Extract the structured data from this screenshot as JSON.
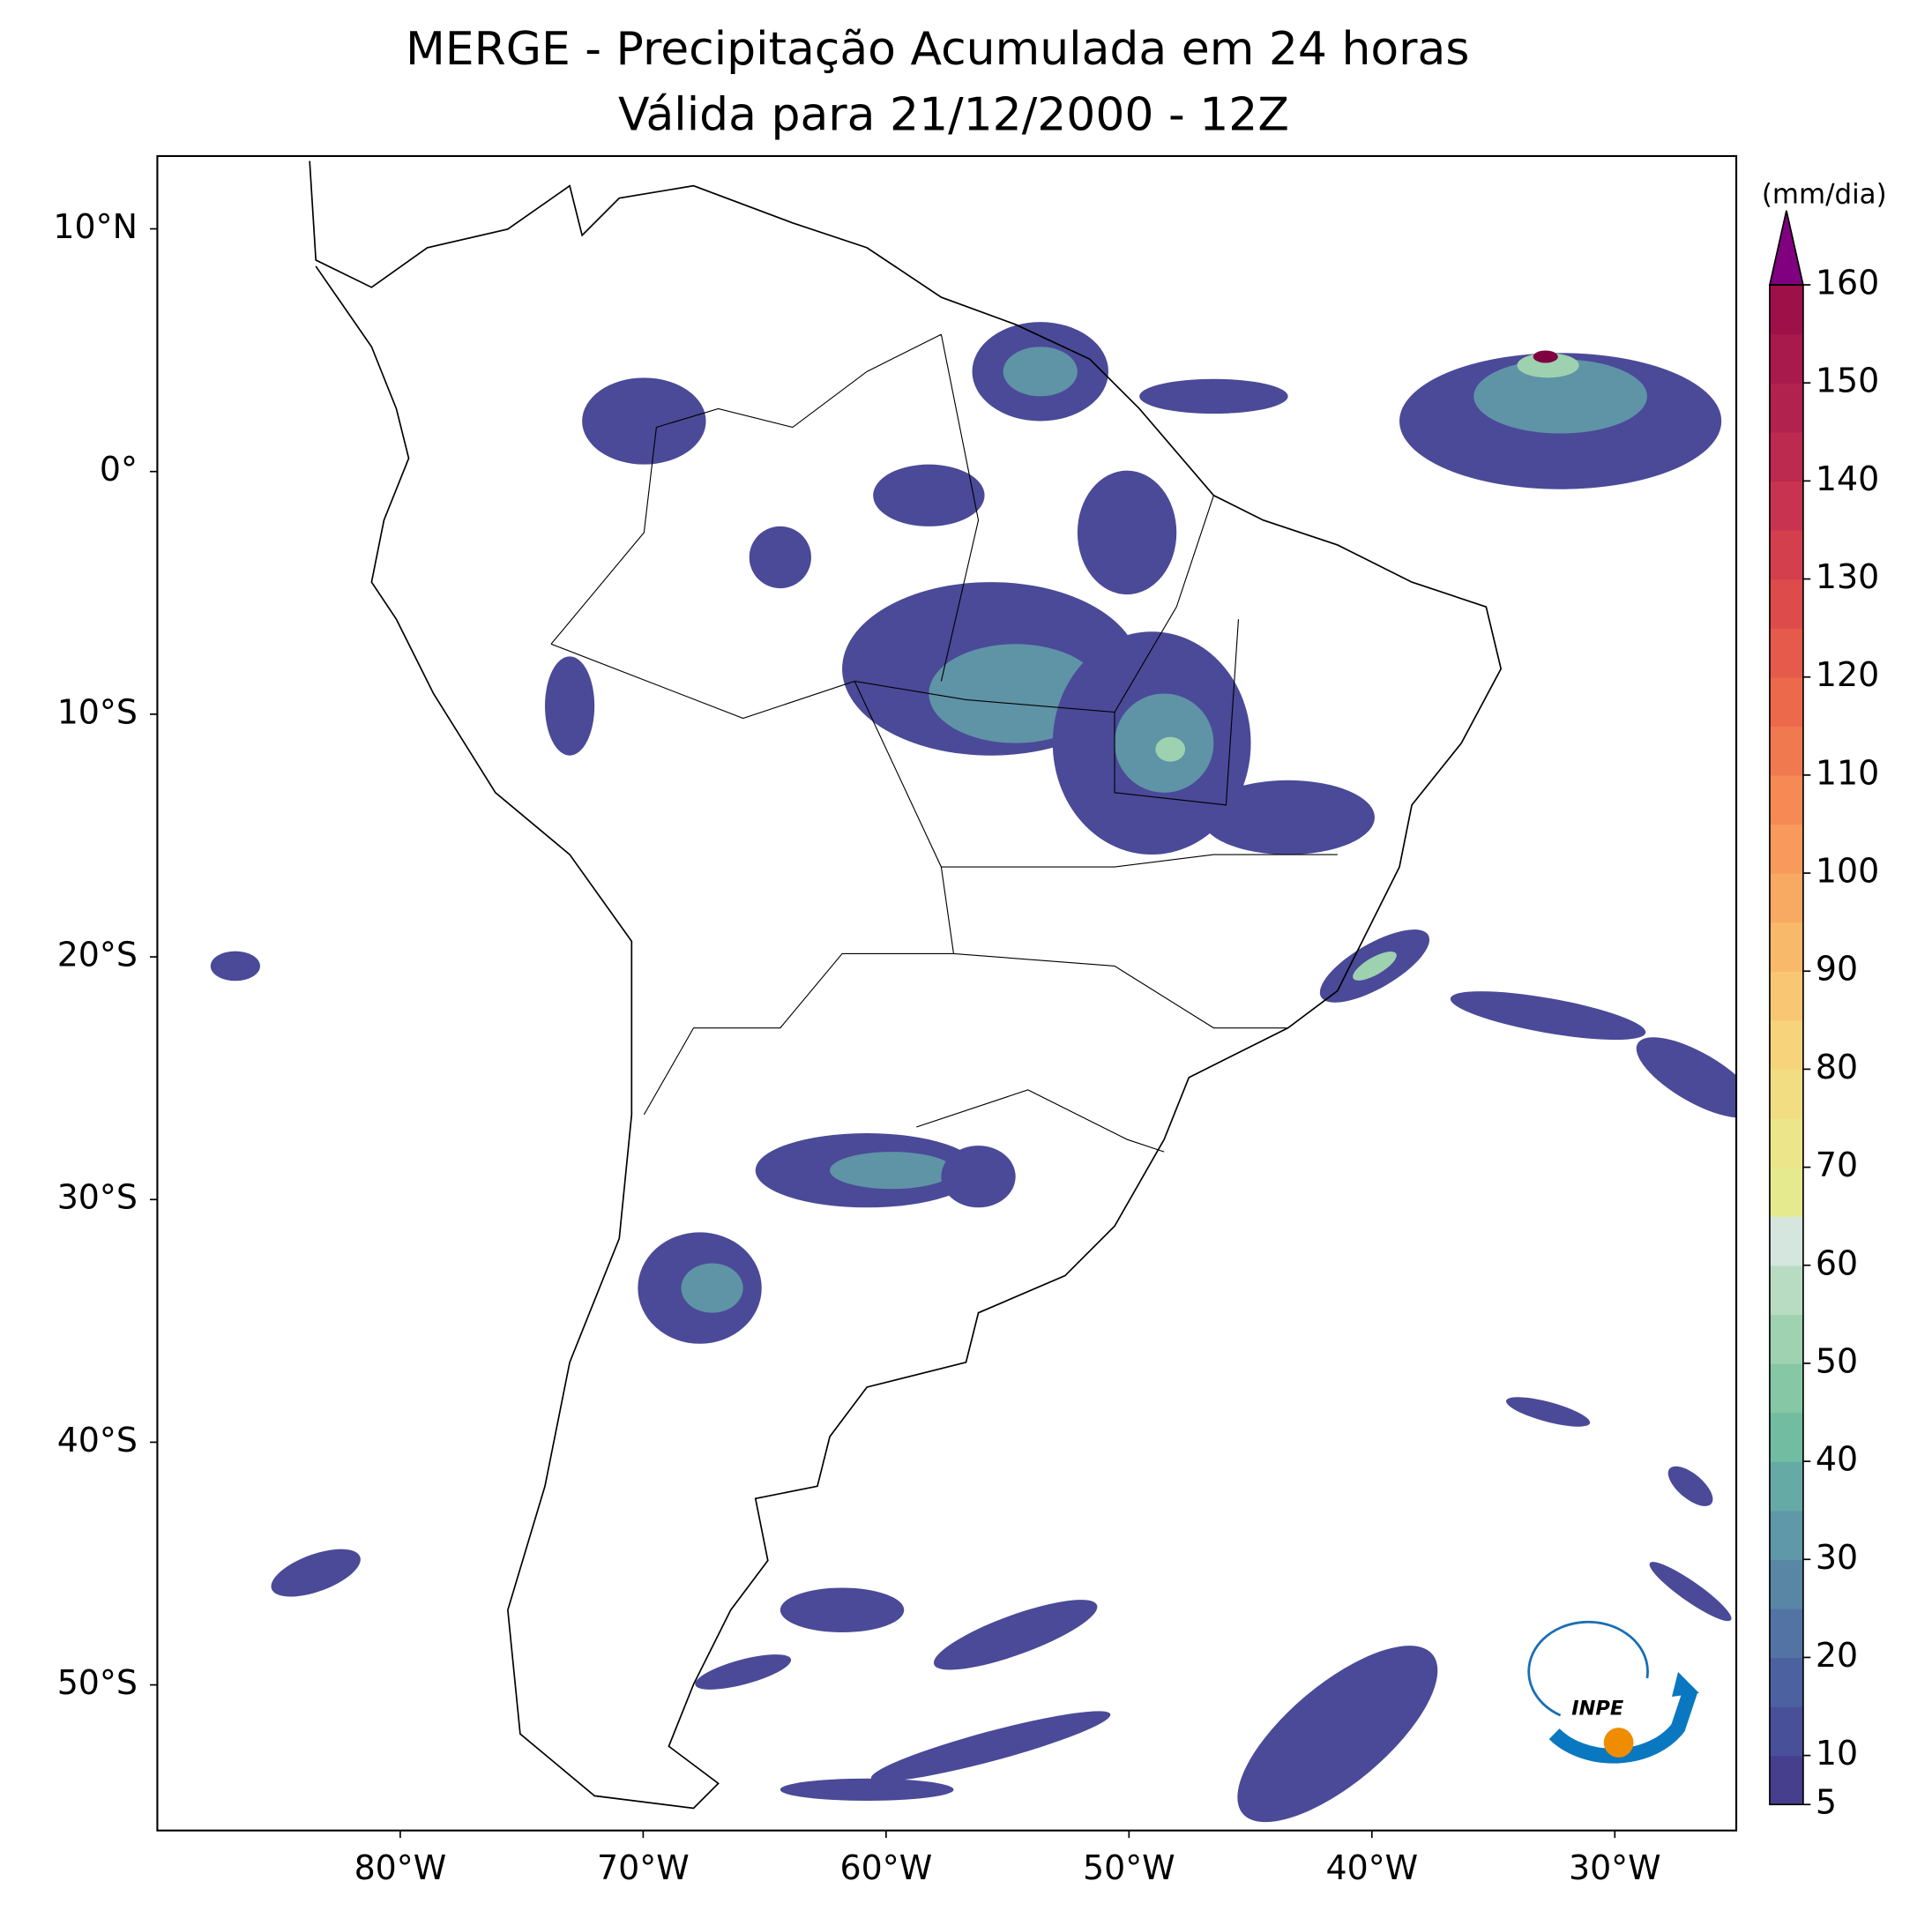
{
  "title": "MERGE - Precipitação Acumulada em 24 horas",
  "subtitle": "Válida para 21/12/2000 - 12Z",
  "map": {
    "lonlim": [
      -90,
      -25
    ],
    "latlim": [
      -56,
      13
    ],
    "lon_ticks": [
      {
        "value": -80,
        "label": "80°W"
      },
      {
        "value": -70,
        "label": "70°W"
      },
      {
        "value": -60,
        "label": "60°W"
      },
      {
        "value": -50,
        "label": "50°W"
      },
      {
        "value": -40,
        "label": "40°W"
      },
      {
        "value": -30,
        "label": "30°W"
      }
    ],
    "lat_ticks": [
      {
        "value": 10,
        "label": "10°N"
      },
      {
        "value": 0,
        "label": "0°"
      },
      {
        "value": -10,
        "label": "10°S"
      },
      {
        "value": -20,
        "label": "20°S"
      },
      {
        "value": -30,
        "label": "30°S"
      },
      {
        "value": -40,
        "label": "40°S"
      },
      {
        "value": -50,
        "label": "50°S"
      }
    ]
  },
  "colorbar": {
    "unit": "(mm/dia)",
    "range": [
      5,
      160
    ],
    "ticks": [
      5,
      10,
      20,
      30,
      40,
      50,
      60,
      70,
      80,
      90,
      100,
      110,
      120,
      130,
      140,
      150,
      160
    ],
    "colors": [
      "#453f8e",
      "#48509a",
      "#4c61a0",
      "#5373a4",
      "#5a86a6",
      "#5f98a8",
      "#66aaa6",
      "#72bca2",
      "#86c8a6",
      "#9ed2b0",
      "#b8dcc2",
      "#d4e6de",
      "#e6ea8e",
      "#ede58a",
      "#f3dd83",
      "#f7d47c",
      "#f9c774",
      "#f9b96b",
      "#f8aa63",
      "#f79a5c",
      "#f58a55",
      "#f1794f",
      "#ec694b",
      "#e55a4a",
      "#dd4c4b",
      "#d33f4d",
      "#c8344f",
      "#bc2a4f",
      "#b1224f",
      "#a81a4c",
      "#9e1148"
    ],
    "extend_color": "#800080"
  },
  "logo": {
    "text": "INPE"
  }
}
